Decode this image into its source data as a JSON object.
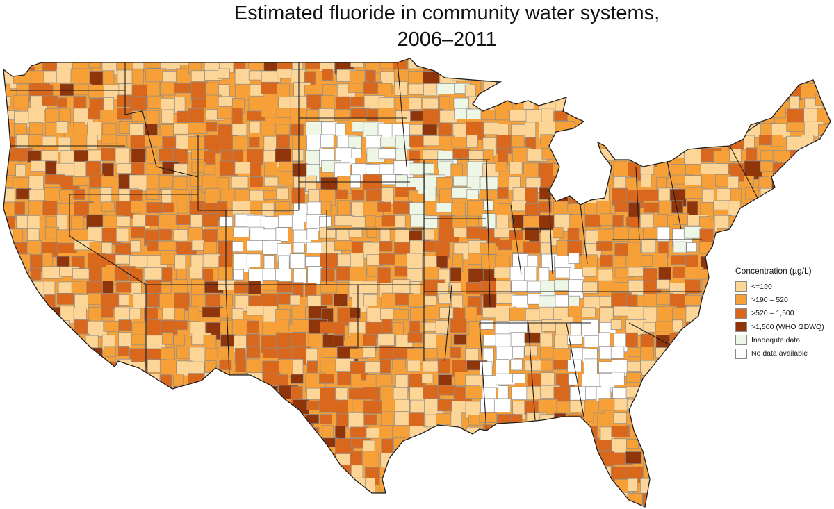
{
  "title": {
    "line1": "Estimated fluoride in community water systems,",
    "line2": "2006–2011"
  },
  "legend": {
    "title": "Concentration (µg/L)",
    "items": [
      {
        "label": "<=190",
        "color": "#fdd596"
      },
      {
        "label": ">190 – 520",
        "color": "#f6a037"
      },
      {
        "label": ">520 – 1,500",
        "color": "#d9681d"
      },
      {
        "label": ">1,500 (WHO GDWQ)",
        "color": "#8f3509"
      },
      {
        "label": "Inadequte data",
        "color": "#eef7e6"
      },
      {
        "label": "No data available",
        "color": "#ffffff"
      }
    ]
  }
}
